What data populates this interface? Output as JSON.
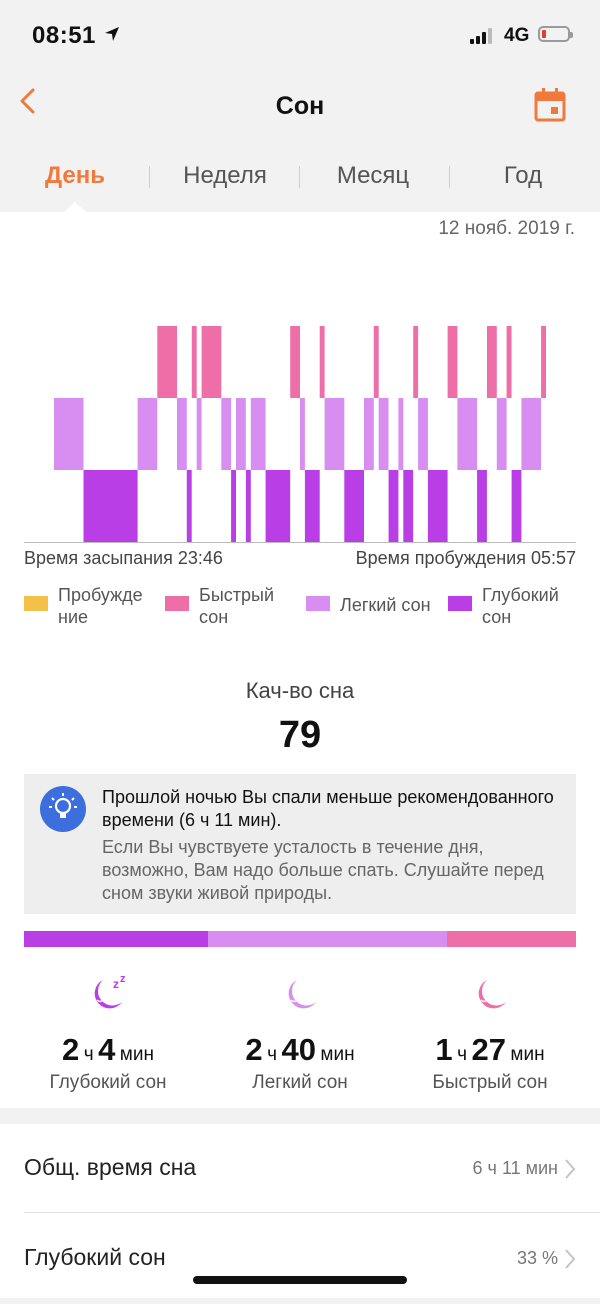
{
  "status": {
    "time": "08:51",
    "network": "4G"
  },
  "header": {
    "title": "Сон"
  },
  "tabs": [
    {
      "label": "День",
      "active": true
    },
    {
      "label": "Неделя",
      "active": false
    },
    {
      "label": "Месяц",
      "active": false
    },
    {
      "label": "Год",
      "active": false
    }
  ],
  "date": "12 нояб. 2019 г.",
  "times": {
    "fall_asleep": "Время засыпания 23:46",
    "wake_up": "Время пробуждения 05:57"
  },
  "legend": [
    {
      "label1": "Пробужде",
      "label2": "ние",
      "color": "#f5c04a"
    },
    {
      "label1": "Быстрый",
      "label2": "сон",
      "color": "#ee6fa8"
    },
    {
      "label1": "Легкий сон",
      "label2": "",
      "color": "#d78ef0"
    },
    {
      "label1": "Глубокий",
      "label2": "сон",
      "color": "#b93ee6"
    }
  ],
  "quality": {
    "label": "Кач-во сна",
    "value": "79"
  },
  "tip": {
    "strong": "Прошлой ночью Вы спали меньше рекомендованного времени (6 ч 11 мин).",
    "weak": "Если Вы чувствуете усталость в течение дня, возможно, Вам надо больше спать. Слушайте перед сном звуки живой природы."
  },
  "stages": [
    {
      "hours": "2",
      "h_unit": "ч",
      "minutes": "4",
      "m_unit": "мин",
      "name": "Глубокий сон",
      "icon": "moon-zz-icon",
      "color": "#b93ee6"
    },
    {
      "hours": "2",
      "h_unit": "ч",
      "minutes": "40",
      "m_unit": "мин",
      "name": "Легкий сон",
      "icon": "moon-icon",
      "color": "#d78ef0"
    },
    {
      "hours": "1",
      "h_unit": "ч",
      "minutes": "27",
      "m_unit": "мин",
      "name": "Быстрый сон",
      "icon": "moon-icon",
      "color": "#ee6fa8"
    }
  ],
  "distribution": {
    "deep": 124,
    "light": 160,
    "rem": 87
  },
  "list": [
    {
      "label": "Общ. время сна",
      "value": "6 ч 11 мин"
    },
    {
      "label": "Глубокий сон",
      "value": "33 %"
    }
  ],
  "colors": {
    "accent": "#f07a3c",
    "deep": "#b93ee6",
    "light": "#d78ef0",
    "rem": "#ee6fa8",
    "awake": "#f5c04a",
    "tip_icon": "#3c6fdd"
  },
  "chart_data": {
    "type": "bar",
    "title": "",
    "x_range": [
      "23:46",
      "05:57"
    ],
    "levels": [
      "deep",
      "light",
      "rem"
    ],
    "segments": [
      {
        "stage": "light",
        "start": 0,
        "end": 6
      },
      {
        "stage": "deep",
        "start": 6,
        "end": 17
      },
      {
        "stage": "light",
        "start": 17,
        "end": 21
      },
      {
        "stage": "rem",
        "start": 21,
        "end": 25
      },
      {
        "stage": "light",
        "start": 25,
        "end": 27
      },
      {
        "stage": "deep",
        "start": 27,
        "end": 28
      },
      {
        "stage": "rem",
        "start": 28,
        "end": 29
      },
      {
        "stage": "light",
        "start": 29,
        "end": 30
      },
      {
        "stage": "rem",
        "start": 30,
        "end": 34
      },
      {
        "stage": "light",
        "start": 34,
        "end": 36
      },
      {
        "stage": "deep",
        "start": 36,
        "end": 37
      },
      {
        "stage": "light",
        "start": 37,
        "end": 39
      },
      {
        "stage": "deep",
        "start": 39,
        "end": 40
      },
      {
        "stage": "light",
        "start": 40,
        "end": 43
      },
      {
        "stage": "deep",
        "start": 43,
        "end": 48
      },
      {
        "stage": "rem",
        "start": 48,
        "end": 50
      },
      {
        "stage": "light",
        "start": 50,
        "end": 51
      },
      {
        "stage": "deep",
        "start": 51,
        "end": 54
      },
      {
        "stage": "rem",
        "start": 54,
        "end": 55
      },
      {
        "stage": "light",
        "start": 55,
        "end": 59
      },
      {
        "stage": "deep",
        "start": 59,
        "end": 63
      },
      {
        "stage": "light",
        "start": 63,
        "end": 65
      },
      {
        "stage": "rem",
        "start": 65,
        "end": 66
      },
      {
        "stage": "light",
        "start": 66,
        "end": 68
      },
      {
        "stage": "deep",
        "start": 68,
        "end": 70
      },
      {
        "stage": "light",
        "start": 70,
        "end": 71
      },
      {
        "stage": "deep",
        "start": 71,
        "end": 73
      },
      {
        "stage": "rem",
        "start": 73,
        "end": 74
      },
      {
        "stage": "light",
        "start": 74,
        "end": 76
      },
      {
        "stage": "deep",
        "start": 76,
        "end": 80
      },
      {
        "stage": "rem",
        "start": 80,
        "end": 82
      },
      {
        "stage": "light",
        "start": 82,
        "end": 86
      },
      {
        "stage": "deep",
        "start": 86,
        "end": 88
      },
      {
        "stage": "rem",
        "start": 88,
        "end": 90
      },
      {
        "stage": "light",
        "start": 90,
        "end": 92
      },
      {
        "stage": "rem",
        "start": 92,
        "end": 93
      },
      {
        "stage": "deep",
        "start": 93,
        "end": 95
      },
      {
        "stage": "light",
        "start": 95,
        "end": 99
      },
      {
        "stage": "rem",
        "start": 99,
        "end": 100
      }
    ]
  }
}
